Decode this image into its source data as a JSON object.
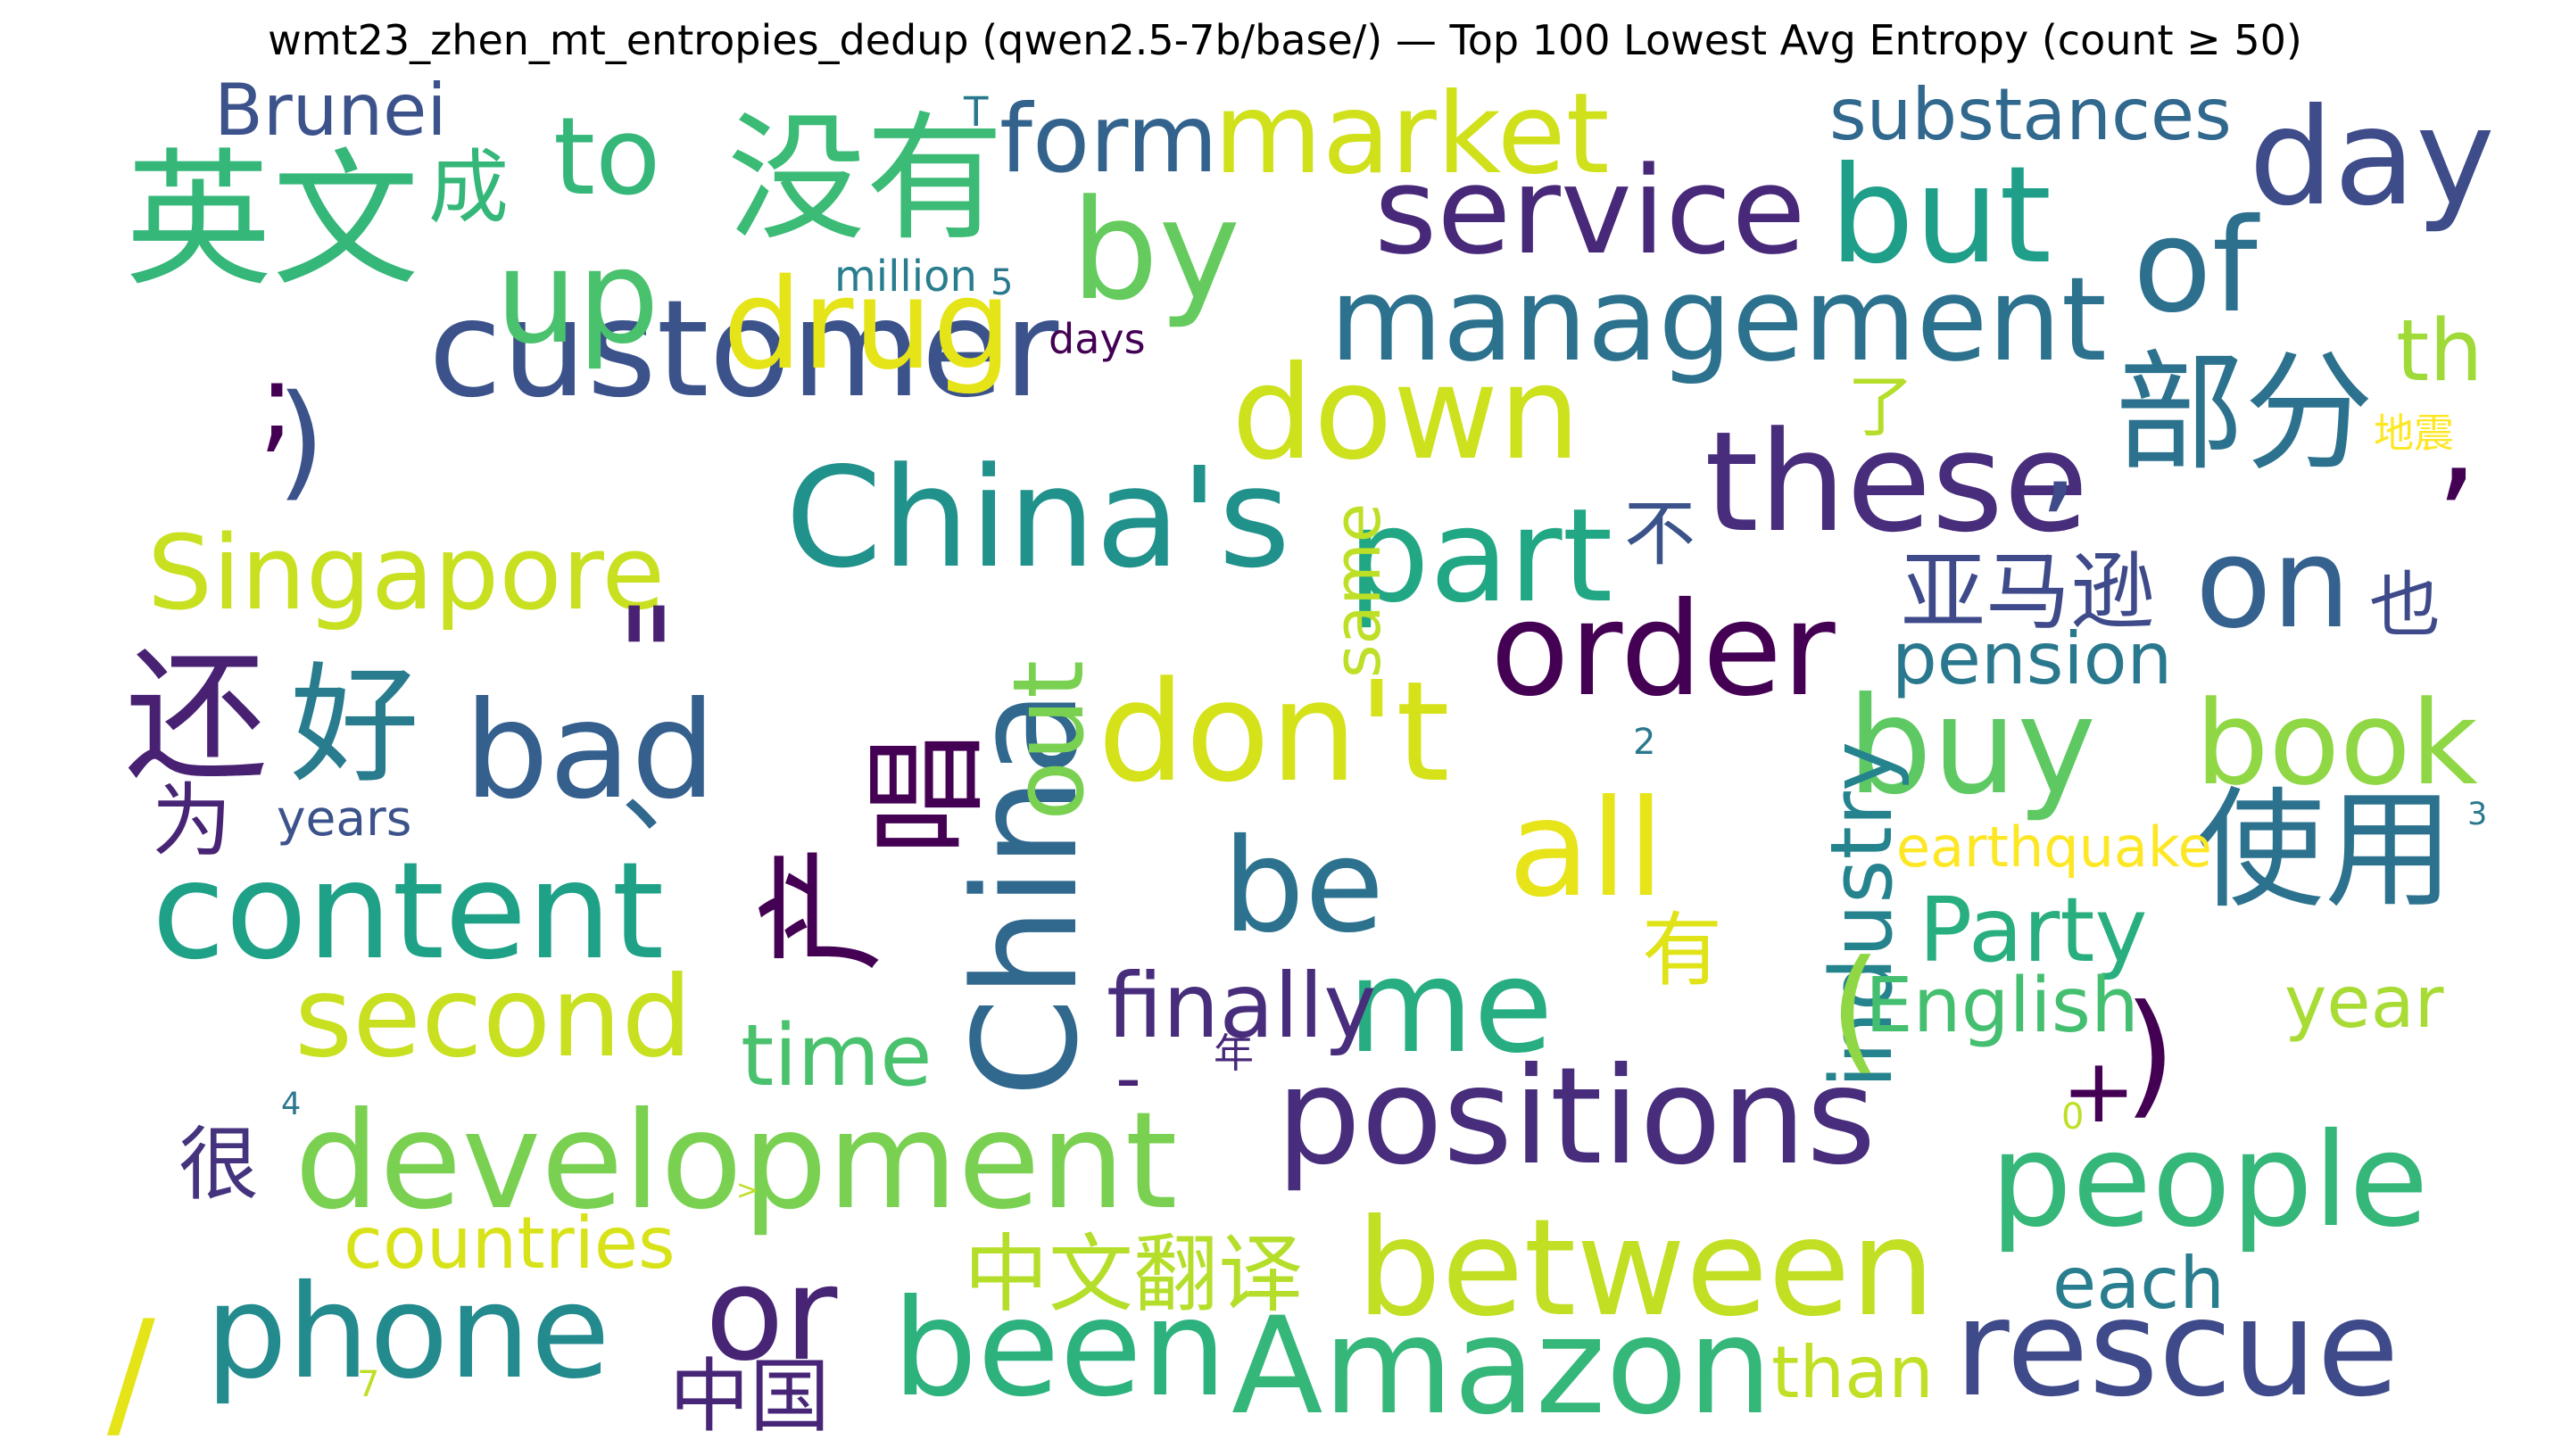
{
  "title": "wmt23_zhen_mt_entropies_dedup (qwen2.5-7b/base/) — Top 100 Lowest Avg Entropy (count ≥ 50)",
  "words": [
    {
      "text": "customer",
      "color": "#3b528b"
    },
    {
      "text": "China's",
      "color": "#21918c"
    },
    {
      "text": "service",
      "color": "#482878"
    },
    {
      "text": "management",
      "color": "#2c728e"
    },
    {
      "text": "these",
      "color": "#472d7b"
    },
    {
      "text": "development",
      "color": "#7ad151"
    },
    {
      "text": "positions",
      "color": "#472d7b"
    },
    {
      "text": "people",
      "color": "#35b779"
    },
    {
      "text": "between",
      "color": "#c2df23"
    },
    {
      "text": "Amazon",
      "color": "#35b779"
    },
    {
      "text": "content",
      "color": "#1fa187"
    },
    {
      "text": "phone",
      "color": "#238a8d"
    },
    {
      "text": "rescue",
      "color": "#3e4a89"
    },
    {
      "text": "been",
      "color": "#2db27d"
    },
    {
      "text": "China",
      "color": "#31688e"
    },
    {
      "text": "Singapore",
      "color": "#c8e020"
    },
    {
      "text": "drug",
      "color": "#e5e419"
    },
    {
      "text": "market",
      "color": "#d0e11c"
    },
    {
      "text": "down",
      "color": "#cde11d"
    },
    {
      "text": "don't",
      "color": "#d5e21a"
    },
    {
      "text": "order",
      "color": "#440154"
    },
    {
      "text": "second",
      "color": "#c8e020"
    },
    {
      "text": "英文",
      "color": "#35b779"
    },
    {
      "text": "没有",
      "color": "#3bbb75"
    },
    {
      "text": "部分",
      "color": "#2c728e"
    },
    {
      "text": "使用",
      "color": "#2c728e"
    },
    {
      "text": "but",
      "color": "#1f9e89"
    },
    {
      "text": "day",
      "color": "#3e4c8a"
    },
    {
      "text": "by",
      "color": "#65cb5e"
    },
    {
      "text": "up",
      "color": "#4ac16d"
    },
    {
      "text": "of",
      "color": "#2d708e"
    },
    {
      "text": "part",
      "color": "#22a785"
    },
    {
      "text": "bad",
      "color": "#355f8d"
    },
    {
      "text": "all",
      "color": "#e7e419"
    },
    {
      "text": "buy",
      "color": "#5ec962"
    },
    {
      "text": "be",
      "color": "#2c728e"
    },
    {
      "text": "me",
      "color": "#27ad81"
    },
    {
      "text": "or",
      "color": "#482475"
    },
    {
      "text": "on",
      "color": "#34618d"
    },
    {
      "text": "book",
      "color": "#8fd744"
    },
    {
      "text": "Party",
      "color": "#29af7f"
    },
    {
      "text": "还",
      "color": "#482173"
    },
    {
      "text": "好",
      "color": "#287c8e"
    },
    {
      "text": "产",
      "color": "#440154"
    },
    {
      "text": "唱",
      "color": "#440154"
    },
    {
      "text": "out",
      "color": "#7ad151"
    },
    {
      "text": "to",
      "color": "#35b779"
    },
    {
      "text": "form",
      "color": "#33638d"
    },
    {
      "text": "Brunei",
      "color": "#3b528b"
    },
    {
      "text": "substances",
      "color": "#31688e"
    },
    {
      "text": "th",
      "color": "#a0da39"
    },
    {
      "text": "industry",
      "color": "#25838e"
    },
    {
      "text": "亚马逊",
      "color": "#3e4a89"
    },
    {
      "text": "中文翻译",
      "color": "#b5de2b"
    },
    {
      "text": "中国",
      "color": "#482677"
    },
    {
      "text": "finally",
      "color": "#472d7b"
    },
    {
      "text": "time",
      "color": "#4ac16d"
    },
    {
      "text": "English",
      "color": "#44bf70"
    },
    {
      "text": "year",
      "color": "#a8db34"
    },
    {
      "text": "pension",
      "color": "#2a788e"
    },
    {
      "text": "countries",
      "color": "#d8e219"
    },
    {
      "text": "each",
      "color": "#287d8e"
    },
    {
      "text": "than",
      "color": "#c0df25"
    },
    {
      "text": "earthquake",
      "color": "#fde725"
    },
    {
      "text": "years",
      "color": "#3b528b"
    },
    {
      "text": "same",
      "color": "#bddf26"
    },
    {
      "text": "million",
      "color": "#287d8e"
    },
    {
      "text": "days",
      "color": "#440154"
    },
    {
      "text": "成",
      "color": "#35b779"
    },
    {
      "text": "了",
      "color": "#b5de2b"
    },
    {
      "text": "不",
      "color": "#3b528b"
    },
    {
      "text": "也",
      "color": "#3e4a89"
    },
    {
      "text": "有",
      "color": "#e0e318"
    },
    {
      "text": "为",
      "color": "#482475"
    },
    {
      "text": "很",
      "color": "#46337e"
    },
    {
      "text": "年",
      "color": "#482878"
    },
    {
      "text": "地震",
      "color": "#fde725"
    },
    {
      "text": ";",
      "color": "#440154"
    },
    {
      "text": ")",
      "color": "#3b528b"
    },
    {
      "text": ",",
      "color": "#3e4a89"
    },
    {
      "text": ",",
      "color": "#440154"
    },
    {
      "text": "\"",
      "color": "#482173"
    },
    {
      "text": "、",
      "color": "#31688e"
    },
    {
      "text": "(",
      "color": "#8fd744"
    },
    {
      "text": ")",
      "color": "#440154"
    },
    {
      "text": "+",
      "color": "#440154"
    },
    {
      "text": "/",
      "color": "#e5e419"
    },
    {
      "text": "-",
      "color": "#482475"
    },
    {
      "text": "T",
      "color": "#2a788e"
    },
    {
      "text": "5",
      "color": "#2a788e"
    },
    {
      "text": "2",
      "color": "#2a788e"
    },
    {
      "text": "3",
      "color": "#2a788e"
    },
    {
      "text": "4",
      "color": "#2a788e"
    },
    {
      "text": "0",
      "color": "#bddf26"
    },
    {
      "text": "7",
      "color": "#bddf26"
    },
    {
      "text": ">",
      "color": "#bddf26"
    }
  ]
}
